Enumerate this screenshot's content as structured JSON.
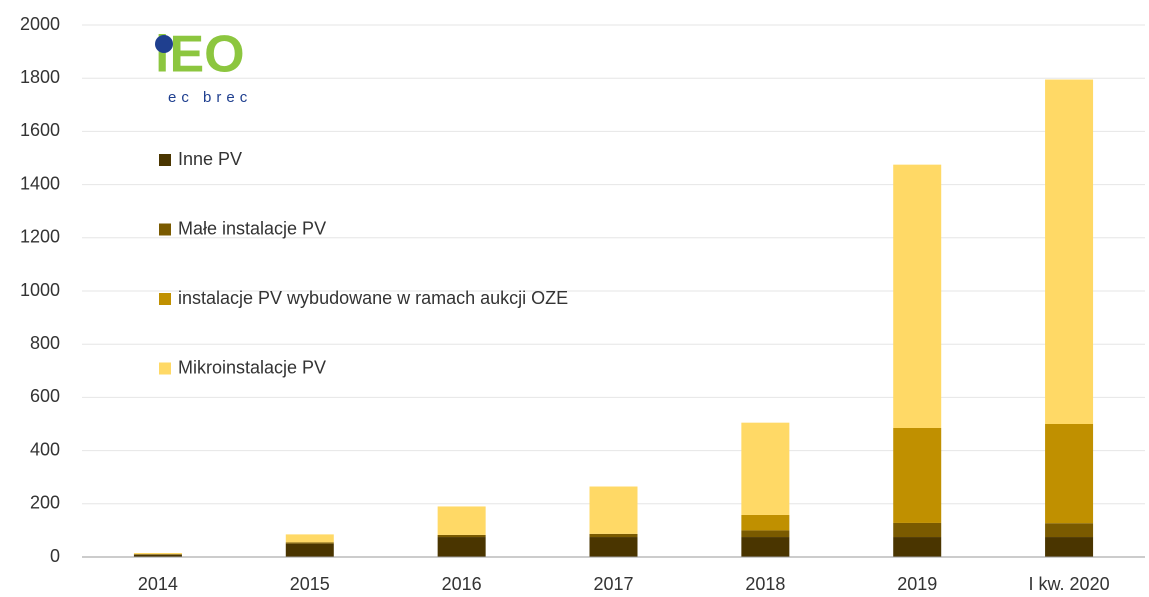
{
  "chart_data": {
    "type": "stacked_bar",
    "logo": {
      "main": "iEO",
      "sub": "ec brec"
    },
    "categories": [
      "2014",
      "2015",
      "2016",
      "2017",
      "2018",
      "2019",
      "I kw. 2020"
    ],
    "series": [
      {
        "name": "Inne PV",
        "color": "#4a3500",
        "values": [
          10,
          50,
          75,
          75,
          75,
          75,
          75
        ]
      },
      {
        "name": "Małe instalacje PV",
        "color": "#7a5a00",
        "values": [
          0,
          5,
          8,
          12,
          25,
          53,
          52
        ]
      },
      {
        "name": "instalacje PV wybudowane w ramach aukcji OZE",
        "color": "#c09000",
        "values": [
          0,
          0,
          0,
          0,
          58,
          357,
          373
        ]
      },
      {
        "name": "Mikroinstalacje PV",
        "color": "#ffd966",
        "values": [
          5,
          30,
          107,
          178,
          347,
          990,
          1295
        ]
      }
    ],
    "ylim": [
      0,
      2000
    ],
    "yticks": [
      0,
      200,
      400,
      600,
      800,
      1000,
      1200,
      1400,
      1600,
      1800,
      2000
    ],
    "grid": true
  }
}
